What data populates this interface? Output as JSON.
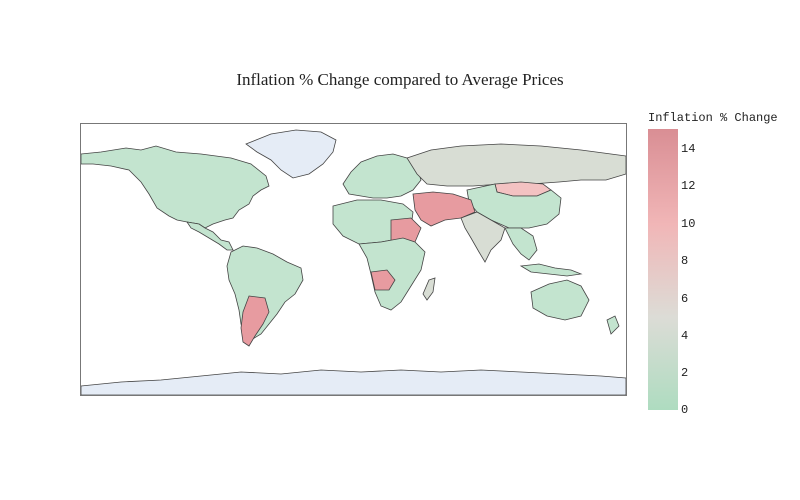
{
  "title": "Inflation % Change compared to Average Prices",
  "colorbar": {
    "title": "Inflation % Change",
    "ticks": [
      "14",
      "12",
      "10",
      "8",
      "6",
      "4",
      "2",
      "0"
    ],
    "stops": [
      "#aedcc0",
      "#dcdcd6",
      "#f1b6b7",
      "#d98e94"
    ]
  },
  "colors": {
    "ocean": "#ffffff",
    "land_nodata": "#e5ecf6",
    "border": "#444444",
    "low": "#c3e4cf",
    "mid": "#d8ddd4",
    "high": "#e79ba0",
    "pink": "#f3c2c2"
  },
  "map": {
    "projection": "equirectangular",
    "regions": [
      {
        "name": "Greenland",
        "shade": "nodata"
      },
      {
        "name": "Antarctica",
        "shade": "nodata"
      },
      {
        "name": "North America",
        "shade": "low"
      },
      {
        "name": "Central America",
        "shade": "low"
      },
      {
        "name": "South America",
        "shade": "low"
      },
      {
        "name": "Argentina",
        "shade": "high"
      },
      {
        "name": "Europe",
        "shade": "low"
      },
      {
        "name": "Russia",
        "shade": "mid"
      },
      {
        "name": "Mongolia",
        "shade": "pink"
      },
      {
        "name": "China",
        "shade": "low"
      },
      {
        "name": "Middle East",
        "shade": "high"
      },
      {
        "name": "India",
        "shade": "mid"
      },
      {
        "name": "Southeast Asia",
        "shade": "low"
      },
      {
        "name": "North Africa",
        "shade": "low"
      },
      {
        "name": "Sudan",
        "shade": "high"
      },
      {
        "name": "Angola",
        "shade": "high"
      },
      {
        "name": "Southern Africa",
        "shade": "low"
      },
      {
        "name": "Madagascar",
        "shade": "mid"
      },
      {
        "name": "Australia",
        "shade": "low"
      },
      {
        "name": "New Zealand",
        "shade": "low"
      }
    ]
  }
}
